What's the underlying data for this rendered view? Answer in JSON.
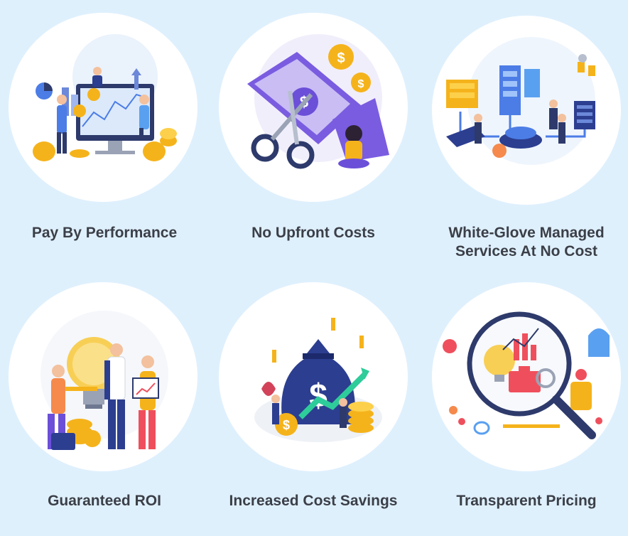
{
  "features": [
    {
      "title": "Pay By Performance",
      "icon": "performance-illustration-icon"
    },
    {
      "title": "No Upfront Costs",
      "icon": "scissors-cut-bill-illustration-icon"
    },
    {
      "title": "White-Glove Managed Services At No Cost",
      "line1": "White-Glove Managed",
      "line2": "Services At No Cost",
      "icon": "managed-services-illustration-icon"
    },
    {
      "title": "Guaranteed ROI",
      "icon": "lightbulb-team-illustration-icon"
    },
    {
      "title": "Increased Cost Savings",
      "icon": "money-bag-savings-illustration-icon"
    },
    {
      "title": "Transparent Pricing",
      "icon": "magnifier-pricing-illustration-icon"
    }
  ],
  "colors": {
    "background": "#dff0fd",
    "circle": "#ffffff",
    "text": "#3b3f47",
    "gold": "#f5b31b",
    "blue": "#2c3e8f",
    "purple": "#6b4fd8"
  }
}
